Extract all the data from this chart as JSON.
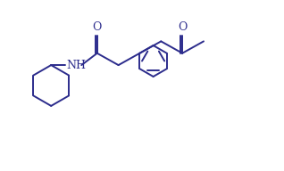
{
  "background_color": "#ffffff",
  "line_color": "#2c2c8c",
  "line_width": 1.4,
  "font_size": 9,
  "figsize": [
    3.18,
    1.92
  ],
  "dpi": 100,
  "xlim": [
    0,
    10
  ],
  "ylim": [
    0,
    6
  ]
}
